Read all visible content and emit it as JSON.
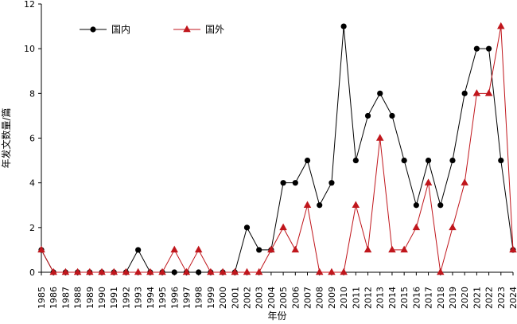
{
  "chart_data": {
    "type": "line",
    "title": "",
    "xlabel": "年份",
    "ylabel": "年发文数量/篇",
    "ylim": [
      0,
      12
    ],
    "yticks": [
      0,
      2,
      4,
      6,
      8,
      10,
      12
    ],
    "x": [
      "1985",
      "1986",
      "1987",
      "1988",
      "1989",
      "1990",
      "1991",
      "1992",
      "1993",
      "1994",
      "1995",
      "1996",
      "1997",
      "1998",
      "1999",
      "2000",
      "2001",
      "2002",
      "2003",
      "2004",
      "2005",
      "2006",
      "2007",
      "2008",
      "2009",
      "2010",
      "2011",
      "2012",
      "2013",
      "2014",
      "2015",
      "2016",
      "2017",
      "2018",
      "2019",
      "2020",
      "2021",
      "2022",
      "2023",
      "2024"
    ],
    "legend_position": "top-left",
    "grid": false,
    "series": [
      {
        "name": "国内",
        "color": "#000000",
        "marker": "circle",
        "values": [
          1,
          0,
          0,
          0,
          0,
          0,
          0,
          0,
          1,
          0,
          0,
          0,
          0,
          0,
          0,
          0,
          0,
          2,
          1,
          1,
          4,
          4,
          5,
          3,
          4,
          11,
          5,
          7,
          8,
          7,
          5,
          3,
          5,
          3,
          5,
          8,
          10,
          10,
          5,
          1
        ]
      },
      {
        "name": "国外",
        "color": "#c0161c",
        "marker": "triangle",
        "values": [
          1,
          0,
          0,
          0,
          0,
          0,
          0,
          0,
          0,
          0,
          0,
          1,
          0,
          1,
          0,
          0,
          0,
          0,
          0,
          1,
          2,
          1,
          3,
          0,
          0,
          0,
          3,
          1,
          6,
          1,
          1,
          2,
          4,
          0,
          2,
          4,
          8,
          8,
          11,
          1
        ]
      }
    ]
  }
}
